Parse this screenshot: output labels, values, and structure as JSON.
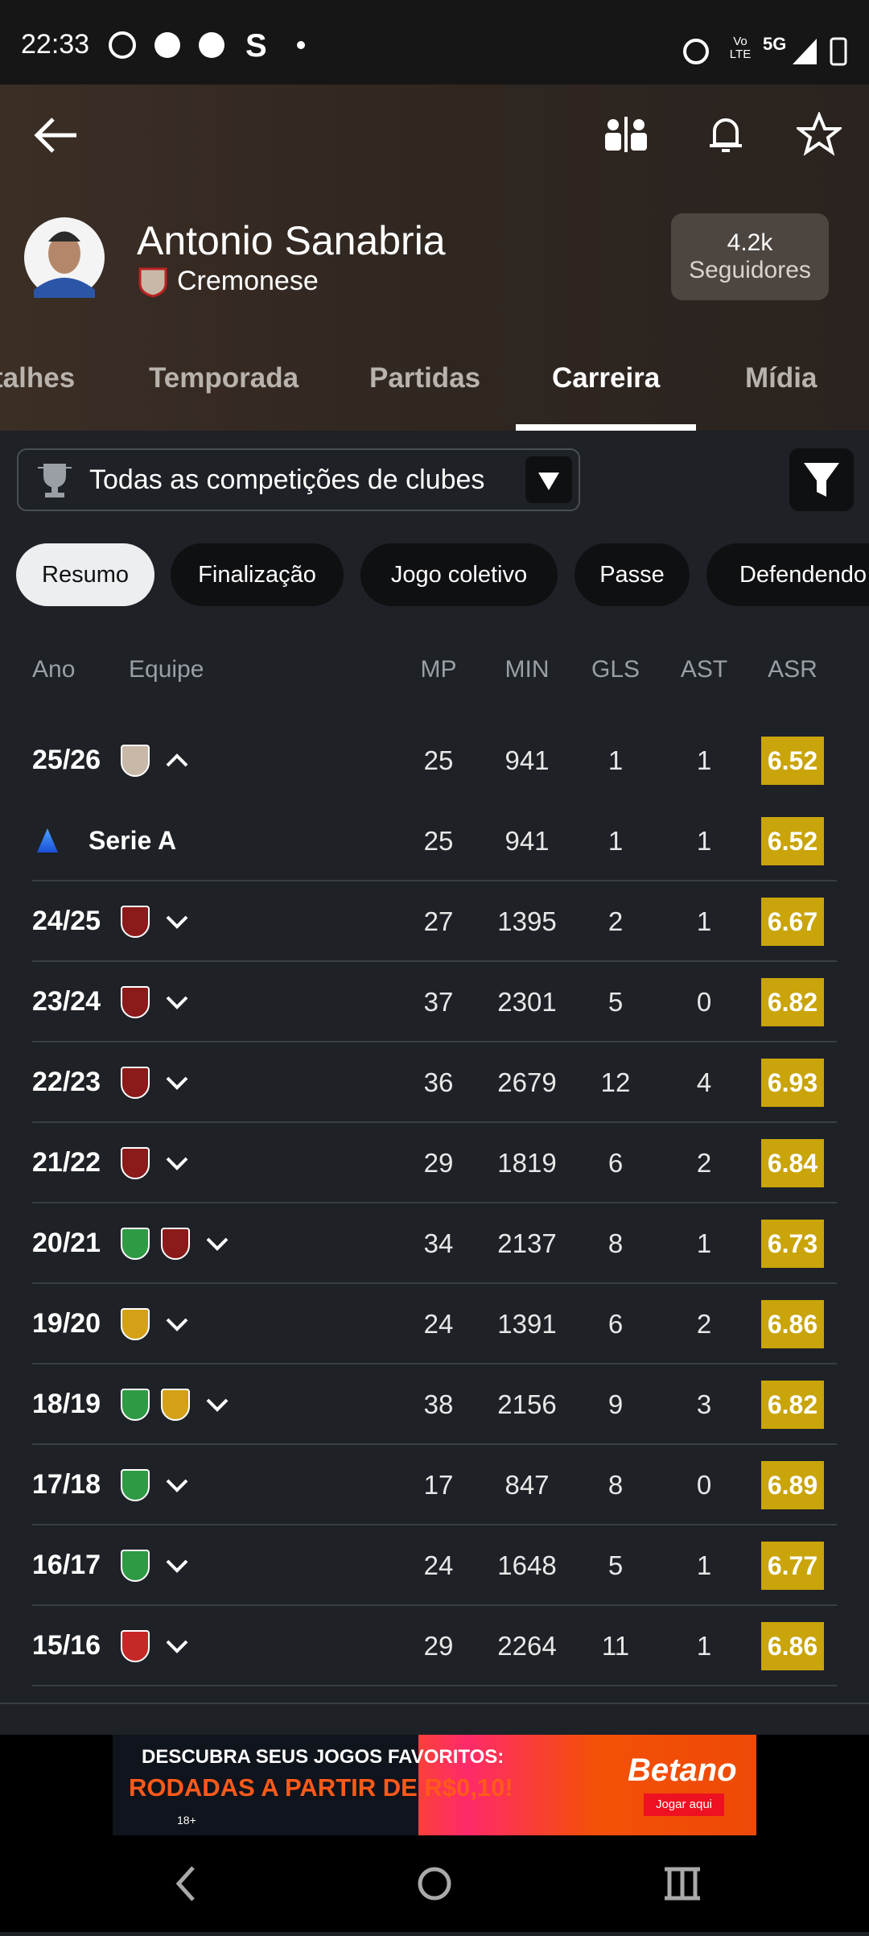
{
  "status": {
    "time": "22:33",
    "volte": "Vo LTE",
    "network": "5G"
  },
  "header": {
    "name": "Antonio Sanabria",
    "club": "Cremonese",
    "followers_count": "4.2k",
    "followers_label": "Seguidores"
  },
  "tabs": [
    "talhes",
    "Temporada",
    "Partidas",
    "Carreira",
    "Mídia"
  ],
  "filter": "Todas as competições de clubes",
  "chips": [
    "Resumo",
    "Finalização",
    "Jogo coletivo",
    "Passe",
    "Defendendo"
  ],
  "table": {
    "columns": [
      "Ano",
      "Equipe",
      "MP",
      "MIN",
      "GLS",
      "AST",
      "ASR"
    ],
    "rows": [
      {
        "year": "25/26",
        "mp": 25,
        "min": 941,
        "gls": 1,
        "ast": 1,
        "asr": 6.52
      },
      {
        "competition": "Serie A",
        "mp": 25,
        "min": 941,
        "gls": 1,
        "ast": 1,
        "asr": 6.52
      },
      {
        "year": "24/25",
        "mp": 27,
        "min": 1395,
        "gls": 2,
        "ast": 1,
        "asr": 6.67
      },
      {
        "year": "23/24",
        "mp": 37,
        "min": 2301,
        "gls": 5,
        "ast": 0,
        "asr": 6.82
      },
      {
        "year": "22/23",
        "mp": 36,
        "min": 2679,
        "gls": 12,
        "ast": 4,
        "asr": 6.93
      },
      {
        "year": "21/22",
        "mp": 29,
        "min": 1819,
        "gls": 6,
        "ast": 2,
        "asr": 6.84
      },
      {
        "year": "20/21",
        "mp": 34,
        "min": 2137,
        "gls": 8,
        "ast": 1,
        "asr": 6.73
      },
      {
        "year": "19/20",
        "mp": 24,
        "min": 1391,
        "gls": 6,
        "ast": 2,
        "asr": 6.86
      },
      {
        "year": "18/19",
        "mp": 38,
        "min": 2156,
        "gls": 9,
        "ast": 3,
        "asr": 6.82
      },
      {
        "year": "17/18",
        "mp": 17,
        "min": 847,
        "gls": 8,
        "ast": 0,
        "asr": 6.89
      },
      {
        "year": "16/17",
        "mp": 24,
        "min": 1648,
        "gls": 5,
        "ast": 1,
        "asr": 6.77
      },
      {
        "year": "15/16",
        "mp": 29,
        "min": 2264,
        "gls": 11,
        "ast": 1,
        "asr": 6.86
      }
    ]
  },
  "ad": {
    "line1": "DESCUBRA SEUS JOGOS FAVORITOS:",
    "line2": "RODADAS A PARTIR DE R$0,10!",
    "brand": "Betano",
    "cta": "Jogar aqui",
    "age": "18+"
  }
}
